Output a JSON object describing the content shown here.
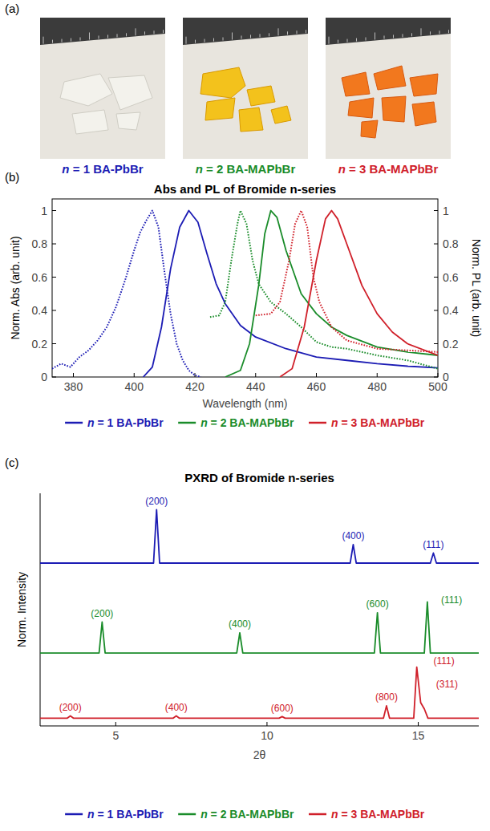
{
  "photo_panel": {
    "letter": "(a)",
    "labels": [
      {
        "text": "n = 1 BA-PbBr",
        "color": "#1c1cb4"
      },
      {
        "text": "n = 2 BA-MAPbBr",
        "color": "#1a8c2a"
      },
      {
        "text": "n = 3 BA-MAPbBr",
        "color": "#d0202a"
      }
    ]
  },
  "chart_data": [
    {
      "type": "line",
      "letter": "(b)",
      "title": "Abs and PL of Bromide n-series",
      "x_label": "Wavelength (nm)",
      "y_label": "Norm. Abs (arb. unit)",
      "y2_label": "Norm. PL (arb. unit)",
      "xlim": [
        373,
        500
      ],
      "xticks": [
        380,
        400,
        420,
        440,
        460,
        480,
        500
      ],
      "ylim": [
        0,
        1.07
      ],
      "yticks": [
        0,
        0.2,
        0.4,
        0.6,
        0.8,
        1
      ],
      "y2lim": [
        0,
        1.07
      ],
      "y2ticks": [
        0,
        0.2,
        0.4,
        0.6,
        0.8,
        1
      ],
      "legend": "bottom",
      "series": [
        {
          "name": "n = 1 BA-PbBr",
          "color": "#1c1cb4",
          "line_style": "dotted",
          "x": [
            373,
            376,
            379,
            382,
            385,
            388,
            391,
            394,
            397,
            400,
            402,
            404,
            406,
            408,
            410,
            412,
            414,
            416,
            418,
            420,
            422
          ],
          "values": [
            0.05,
            0.08,
            0.06,
            0.12,
            0.16,
            0.22,
            0.3,
            0.42,
            0.58,
            0.76,
            0.87,
            0.94,
            1.0,
            0.9,
            0.63,
            0.38,
            0.2,
            0.1,
            0.04,
            0.01,
            0
          ]
        },
        {
          "name": "n = 1 BA-PbBr",
          "color": "#1c1cb4",
          "line_style": "solid",
          "axis": "y2",
          "x": [
            403,
            406,
            409,
            412,
            415,
            418,
            421,
            424,
            427,
            430,
            435,
            440,
            450,
            460,
            470,
            480,
            490,
            500
          ],
          "values": [
            0,
            0.06,
            0.3,
            0.65,
            0.9,
            1.0,
            0.93,
            0.74,
            0.56,
            0.44,
            0.31,
            0.24,
            0.17,
            0.12,
            0.1,
            0.08,
            0.065,
            0.055
          ]
        },
        {
          "name": "n = 2 BA-MAPbBr",
          "color": "#1a8c2a",
          "line_style": "dotted",
          "x": [
            425,
            428,
            430,
            432,
            434,
            435,
            437,
            439,
            441,
            445,
            450,
            455,
            460,
            465,
            470,
            480,
            490,
            500
          ],
          "values": [
            0.36,
            0.37,
            0.45,
            0.7,
            0.92,
            1.0,
            0.92,
            0.7,
            0.56,
            0.45,
            0.38,
            0.3,
            0.21,
            0.18,
            0.17,
            0.13,
            0.1,
            0.05
          ]
        },
        {
          "name": "n = 2 BA-MAPbBr",
          "color": "#1a8c2a",
          "line_style": "solid",
          "axis": "y2",
          "x": [
            430,
            435,
            438,
            441,
            443,
            445,
            447,
            450,
            455,
            460,
            465,
            470,
            480,
            490,
            500
          ],
          "values": [
            0,
            0.04,
            0.2,
            0.55,
            0.86,
            1.0,
            0.96,
            0.76,
            0.5,
            0.38,
            0.3,
            0.25,
            0.18,
            0.15,
            0.13
          ]
        },
        {
          "name": "n = 3 BA-MAPbBr",
          "color": "#d0202a",
          "line_style": "dotted",
          "x": [
            440,
            445,
            448,
            451,
            453,
            455,
            457,
            459,
            461,
            465,
            470,
            480,
            490,
            500
          ],
          "values": [
            0.37,
            0.38,
            0.45,
            0.7,
            0.92,
            1.0,
            0.9,
            0.6,
            0.45,
            0.3,
            0.22,
            0.17,
            0.16,
            0.15
          ]
        },
        {
          "name": "n = 3 BA-MAPbBr",
          "color": "#d0202a",
          "line_style": "solid",
          "axis": "y2",
          "x": [
            448,
            452,
            456,
            460,
            463,
            465,
            467,
            470,
            475,
            480,
            485,
            490,
            500
          ],
          "values": [
            0,
            0.05,
            0.3,
            0.7,
            0.95,
            1.0,
            0.95,
            0.8,
            0.55,
            0.38,
            0.27,
            0.2,
            0.13
          ]
        }
      ]
    },
    {
      "type": "line",
      "letter": "(c)",
      "title": "PXRD of Bromide n-series",
      "x_label": "2θ",
      "y_label": "Norm. Intensity",
      "xlim": [
        2.5,
        17
      ],
      "xticks": [
        5,
        10,
        15
      ],
      "ylim": [
        0,
        3
      ],
      "tick_labels": "x",
      "legend": "bottom",
      "series": [
        {
          "name": "n = 1 BA-PbBr",
          "color": "#1c1cb4",
          "line_style": "solid",
          "x": [
            2.5,
            6.25,
            6.35,
            6.45,
            12.75,
            12.85,
            12.95,
            15.4,
            15.5,
            15.6,
            17
          ],
          "values": [
            2.1,
            2.1,
            2.79,
            2.1,
            2.1,
            2.34,
            2.1,
            2.1,
            2.23,
            2.1,
            2.1
          ],
          "annotations": [
            {
              "x": 6.35,
              "y": 2.86,
              "text": "(200)"
            },
            {
              "x": 12.85,
              "y": 2.41,
              "text": "(400)"
            },
            {
              "x": 15.5,
              "y": 2.3,
              "text": "(111)"
            }
          ]
        },
        {
          "name": "n = 2 BA-MAPbBr",
          "color": "#1a8c2a",
          "line_style": "solid",
          "x": [
            2.5,
            4.45,
            4.55,
            4.65,
            9.0,
            9.1,
            9.2,
            13.55,
            13.65,
            13.75,
            15.2,
            15.3,
            15.4,
            17
          ],
          "values": [
            0.94,
            0.94,
            1.34,
            0.94,
            0.94,
            1.2,
            0.94,
            0.94,
            1.46,
            0.94,
            0.94,
            1.6,
            0.94,
            0.94
          ],
          "annotations": [
            {
              "x": 4.55,
              "y": 1.41,
              "text": "(200)"
            },
            {
              "x": 9.1,
              "y": 1.27,
              "text": "(400)"
            },
            {
              "x": 13.65,
              "y": 1.53,
              "text": "(600)"
            },
            {
              "x": 16.1,
              "y": 1.58,
              "text": "(111)"
            }
          ]
        },
        {
          "name": "n = 3 BA-MAPbBr",
          "color": "#d0202a",
          "line_style": "solid",
          "x": [
            2.5,
            3.4,
            3.5,
            3.6,
            6.9,
            7.0,
            7.1,
            10.4,
            10.5,
            10.6,
            13.85,
            13.95,
            14.05,
            14.85,
            14.95,
            15.08,
            15.2,
            15.32,
            17
          ],
          "values": [
            0.1,
            0.1,
            0.13,
            0.1,
            0.1,
            0.13,
            0.1,
            0.1,
            0.12,
            0.1,
            0.1,
            0.26,
            0.1,
            0.1,
            0.76,
            0.3,
            0.22,
            0.1,
            0.1
          ],
          "annotations": [
            {
              "x": 3.5,
              "y": 0.2,
              "text": "(200)"
            },
            {
              "x": 7.0,
              "y": 0.2,
              "text": "(400)"
            },
            {
              "x": 10.5,
              "y": 0.19,
              "text": "(600)"
            },
            {
              "x": 13.95,
              "y": 0.33,
              "text": "(800)"
            },
            {
              "x": 15.85,
              "y": 0.8,
              "text": "(111)"
            },
            {
              "x": 15.95,
              "y": 0.5,
              "text": "(311)"
            }
          ]
        }
      ]
    }
  ]
}
